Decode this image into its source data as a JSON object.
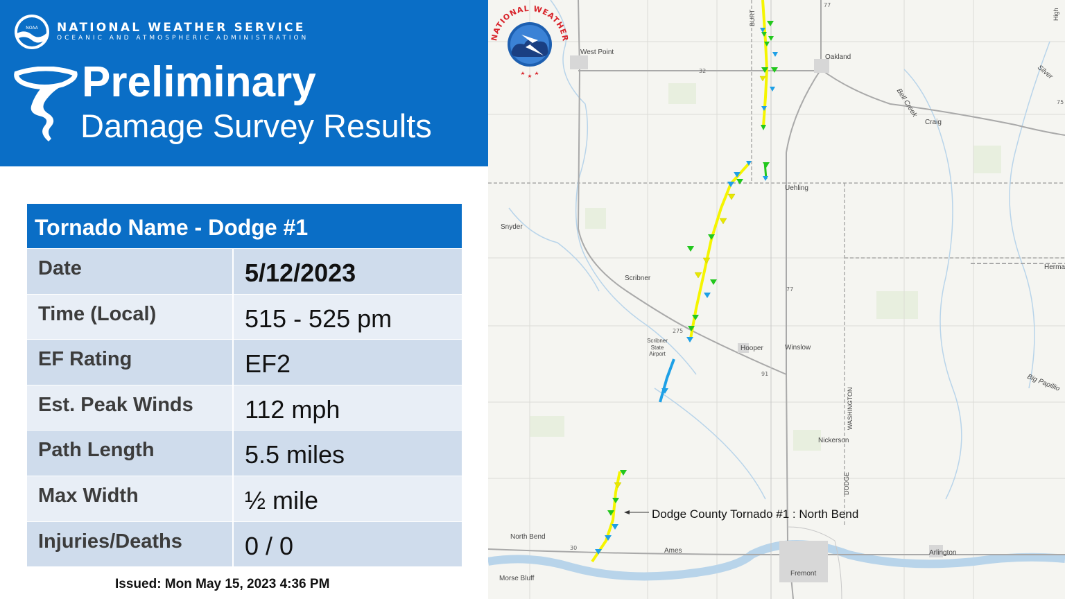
{
  "header": {
    "agency_name": "NATIONAL WEATHER SERVICE",
    "agency_sub": "OCEANIC AND ATMOSPHERIC ADMINISTRATION",
    "noaa_badge": "NOAA",
    "title_main": "Preliminary",
    "title_sub": "Damage Survey Results"
  },
  "table": {
    "heading": "Tornado Name - Dodge #1",
    "rows": [
      {
        "label": "Date",
        "value": "5/12/2023"
      },
      {
        "label": "Time (Local)",
        "value": "515 - 525 pm"
      },
      {
        "label": "EF Rating",
        "value": "EF2"
      },
      {
        "label": "Est. Peak Winds",
        "value": "112 mph"
      },
      {
        "label": "Path Length",
        "value": "5.5 miles"
      },
      {
        "label": "Max Width",
        "value": "½ mile"
      },
      {
        "label": "Injuries/Deaths",
        "value": "0 / 0"
      }
    ]
  },
  "issued": "Issued: Mon May 15, 2023 4:36 PM",
  "map": {
    "callout": "Dodge County Tornado #1 : North Bend",
    "places": [
      "West Point",
      "Oakland",
      "Craig",
      "Uehling",
      "Snyder",
      "Scribner",
      "Scribner State Airport",
      "Hooper",
      "Winslow",
      "Nickerson",
      "North Bend",
      "Ames",
      "Fremont",
      "Morse Bluff",
      "Arlington",
      "Herma",
      "Bell Creek",
      "Big Papillio",
      "Silver",
      "BURT",
      "WASHINGTON",
      "DODGE",
      "High"
    ],
    "road_labels": [
      "32",
      "77",
      "275",
      "91",
      "30",
      "75"
    ],
    "colors": {
      "ef0": "#1ea0e6",
      "ef1": "#22c71d",
      "ef2": "#ffff00",
      "track_yellow": "#f5f500",
      "track_blue": "#1ea0e6",
      "water": "#b8d4ea"
    }
  },
  "nws_logo": {
    "text": "NATIONAL WEATHER SERVICE"
  }
}
